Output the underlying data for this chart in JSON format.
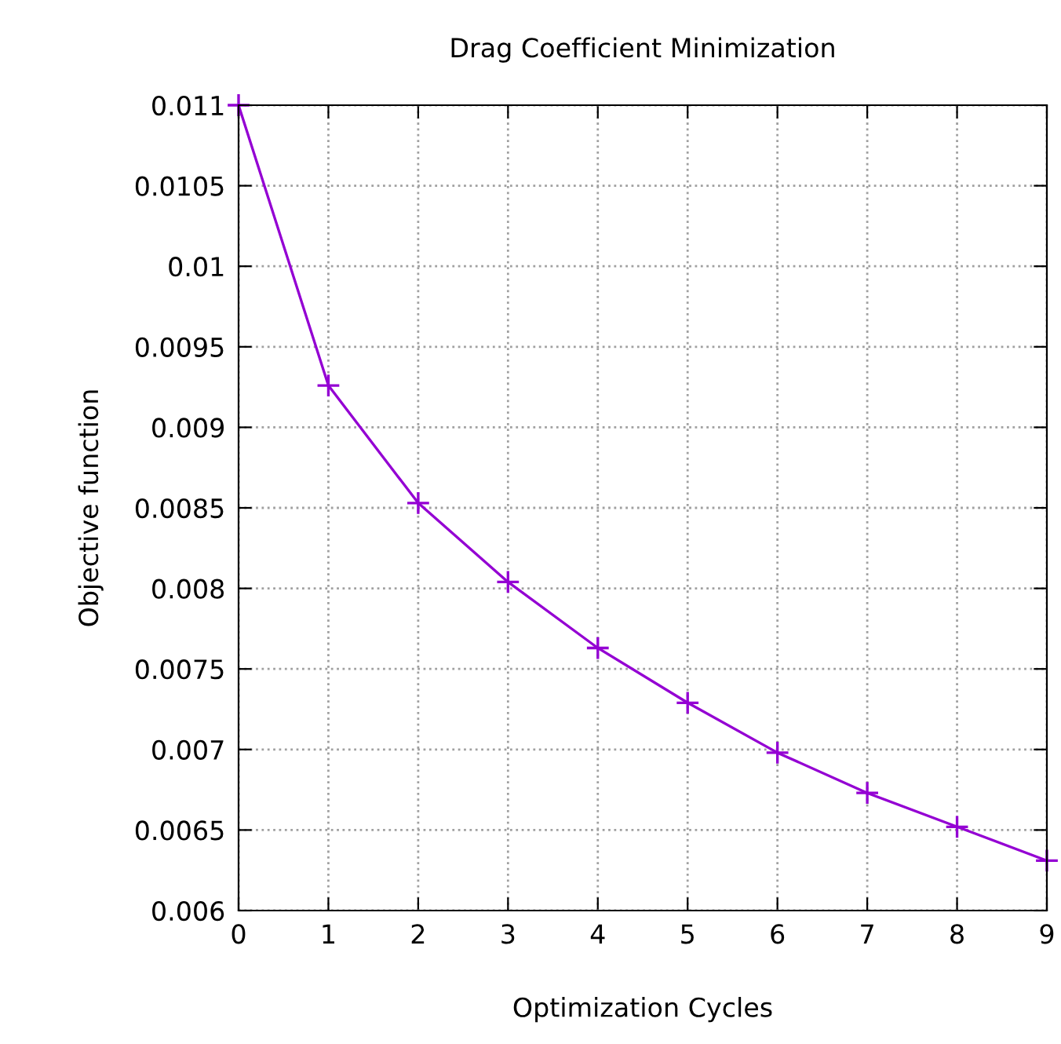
{
  "chart_data": {
    "type": "line",
    "title": "Drag Coefficient Minimization",
    "xlabel": "Optimization Cycles",
    "ylabel": "Objective function",
    "x": [
      0,
      1,
      2,
      3,
      4,
      5,
      6,
      7,
      8,
      9
    ],
    "series": [
      {
        "color": "#9400d3",
        "values": [
          0.011,
          0.00926,
          0.00853,
          0.00804,
          0.00763,
          0.00729,
          0.00698,
          0.00673,
          0.00652,
          0.00631
        ]
      }
    ],
    "xlim": [
      0,
      9
    ],
    "xticks": [
      0,
      1,
      2,
      3,
      4,
      5,
      6,
      7,
      8,
      9
    ],
    "ylim": [
      0.006,
      0.011
    ],
    "yticks": [
      0.006,
      0.0065,
      0.007,
      0.0075,
      0.008,
      0.0085,
      0.009,
      0.0095,
      0.01,
      0.0105,
      0.011
    ],
    "grid": true,
    "marker": "cross",
    "line_style": "solid",
    "legend": false
  }
}
